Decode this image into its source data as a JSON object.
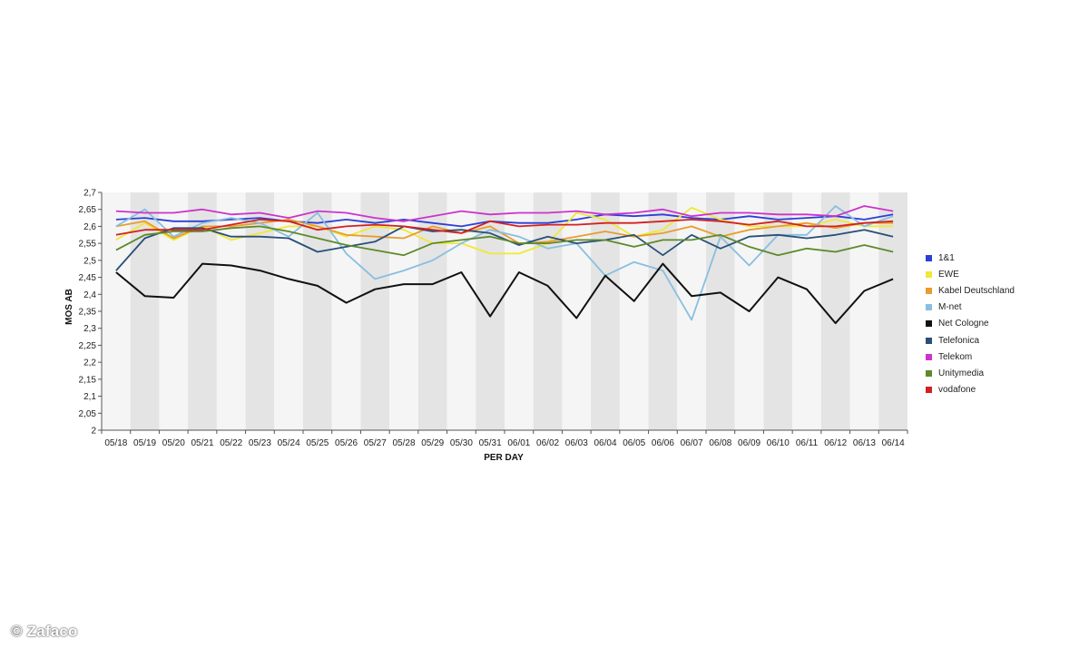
{
  "chart_data": {
    "type": "line",
    "xlabel": "PER DAY",
    "ylabel": "MOS AB",
    "ylim": [
      2,
      2.7
    ],
    "yticks": [
      "2",
      "2,05",
      "2,1",
      "2,15",
      "2,2",
      "2,25",
      "2,3",
      "2,35",
      "2,4",
      "2,45",
      "2,5",
      "2,55",
      "2,6",
      "2,65",
      "2,7"
    ],
    "grid": "alternating vertical bands",
    "legend_position": "right",
    "categories": [
      "05/18",
      "05/19",
      "05/20",
      "05/21",
      "05/22",
      "05/23",
      "05/24",
      "05/25",
      "05/26",
      "05/27",
      "05/28",
      "05/29",
      "05/30",
      "05/31",
      "06/01",
      "06/02",
      "06/03",
      "06/04",
      "06/05",
      "06/06",
      "06/07",
      "06/08",
      "06/09",
      "06/10",
      "06/11",
      "06/12",
      "06/13",
      "06/14"
    ],
    "series": [
      {
        "name": "1&1",
        "color": "#2b3fd6",
        "values": [
          2.62,
          2.625,
          2.615,
          2.615,
          2.62,
          2.625,
          2.615,
          2.61,
          2.62,
          2.61,
          2.62,
          2.61,
          2.6,
          2.615,
          2.61,
          2.61,
          2.62,
          2.635,
          2.63,
          2.635,
          2.625,
          2.62,
          2.63,
          2.62,
          2.625,
          2.63,
          2.62,
          2.635
        ]
      },
      {
        "name": "EWE",
        "color": "#f0e836",
        "values": [
          2.56,
          2.61,
          2.56,
          2.6,
          2.56,
          2.58,
          2.6,
          2.6,
          2.57,
          2.6,
          2.59,
          2.55,
          2.55,
          2.52,
          2.52,
          2.55,
          2.64,
          2.62,
          2.57,
          2.59,
          2.655,
          2.62,
          2.6,
          2.6,
          2.6,
          2.62,
          2.6,
          2.6
        ]
      },
      {
        "name": "Kabel Deutschland",
        "color": "#e89d2d",
        "values": [
          2.6,
          2.615,
          2.565,
          2.6,
          2.6,
          2.61,
          2.62,
          2.6,
          2.575,
          2.57,
          2.565,
          2.6,
          2.58,
          2.6,
          2.55,
          2.555,
          2.57,
          2.585,
          2.57,
          2.58,
          2.6,
          2.57,
          2.59,
          2.6,
          2.61,
          2.595,
          2.61,
          2.61
        ]
      },
      {
        "name": "M-net",
        "color": "#88bfe0",
        "values": [
          2.6,
          2.65,
          2.57,
          2.61,
          2.625,
          2.61,
          2.57,
          2.64,
          2.52,
          2.445,
          2.47,
          2.5,
          2.55,
          2.59,
          2.57,
          2.535,
          2.55,
          2.455,
          2.495,
          2.47,
          2.325,
          2.57,
          2.485,
          2.575,
          2.575,
          2.66,
          2.6,
          2.63
        ]
      },
      {
        "name": "Net Cologne",
        "color": "#111111",
        "values": [
          2.465,
          2.395,
          2.39,
          2.49,
          2.485,
          2.47,
          2.445,
          2.425,
          2.375,
          2.415,
          2.43,
          2.43,
          2.465,
          2.335,
          2.465,
          2.425,
          2.33,
          2.455,
          2.38,
          2.49,
          2.395,
          2.405,
          2.35,
          2.45,
          2.415,
          2.315,
          2.41,
          2.445
        ]
      },
      {
        "name": "Telefonica",
        "color": "#285078",
        "values": [
          2.47,
          2.565,
          2.595,
          2.595,
          2.57,
          2.57,
          2.565,
          2.525,
          2.54,
          2.555,
          2.6,
          2.585,
          2.59,
          2.58,
          2.545,
          2.57,
          2.55,
          2.56,
          2.575,
          2.515,
          2.575,
          2.535,
          2.57,
          2.575,
          2.565,
          2.575,
          2.59,
          2.57
        ]
      },
      {
        "name": "Telekom",
        "color": "#cc33cc",
        "values": [
          2.645,
          2.64,
          2.64,
          2.65,
          2.635,
          2.64,
          2.625,
          2.645,
          2.64,
          2.625,
          2.615,
          2.63,
          2.645,
          2.635,
          2.64,
          2.64,
          2.645,
          2.635,
          2.64,
          2.65,
          2.63,
          2.64,
          2.64,
          2.635,
          2.635,
          2.63,
          2.66,
          2.645
        ]
      },
      {
        "name": "Unitymedia",
        "color": "#5e8a2a",
        "values": [
          2.53,
          2.575,
          2.585,
          2.585,
          2.595,
          2.6,
          2.585,
          2.565,
          2.545,
          2.53,
          2.515,
          2.55,
          2.56,
          2.57,
          2.55,
          2.55,
          2.56,
          2.56,
          2.54,
          2.56,
          2.56,
          2.575,
          2.54,
          2.515,
          2.535,
          2.525,
          2.545,
          2.525
        ]
      },
      {
        "name": "vodafone",
        "color": "#d42020",
        "values": [
          2.575,
          2.59,
          2.59,
          2.59,
          2.605,
          2.62,
          2.615,
          2.59,
          2.6,
          2.605,
          2.6,
          2.59,
          2.58,
          2.615,
          2.6,
          2.605,
          2.605,
          2.61,
          2.61,
          2.615,
          2.62,
          2.615,
          2.605,
          2.615,
          2.6,
          2.6,
          2.61,
          2.615
        ]
      }
    ]
  },
  "watermark": "© Zafaco"
}
